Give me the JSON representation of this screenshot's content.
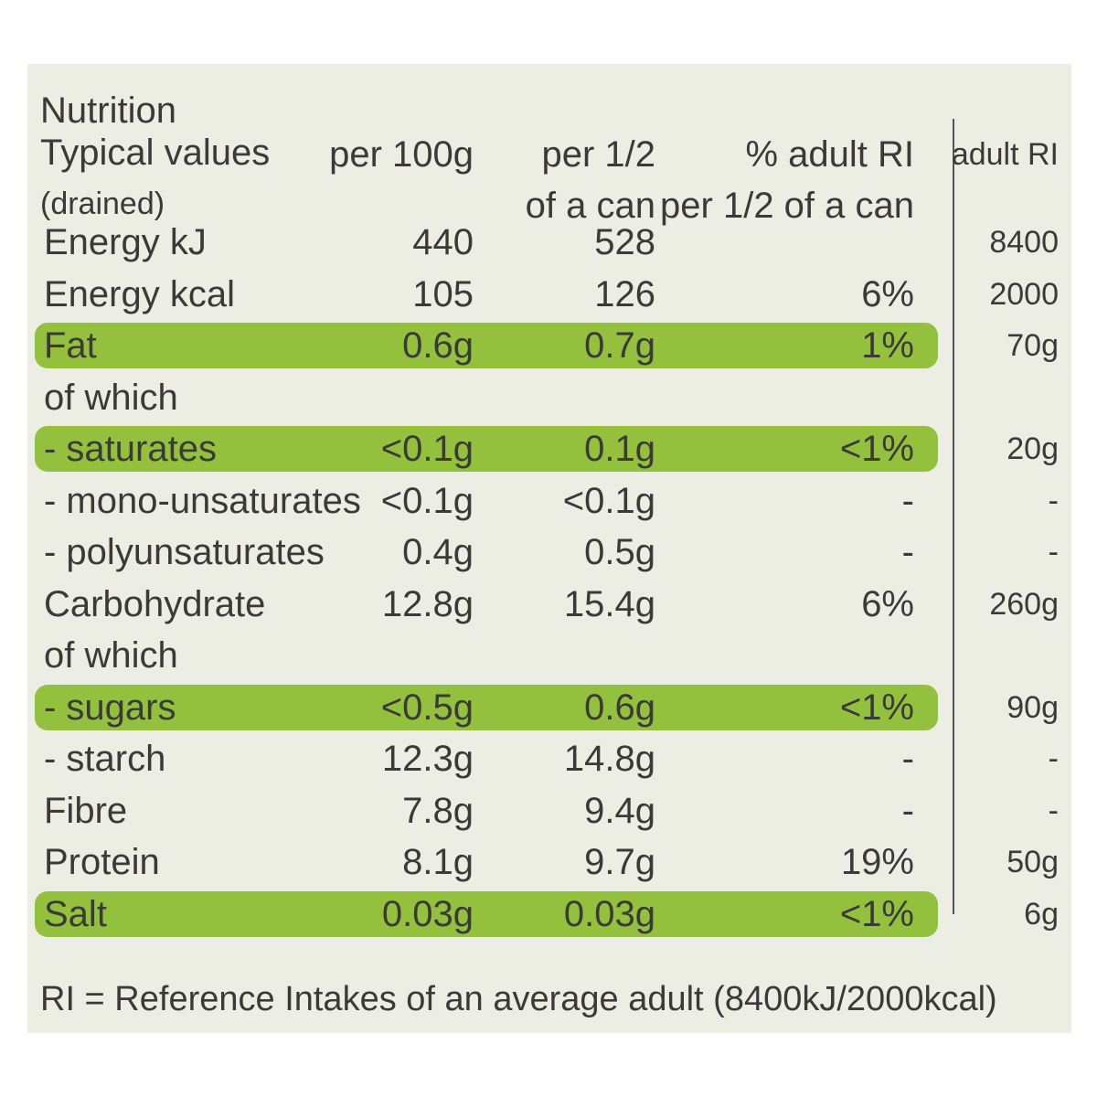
{
  "label": {
    "title": "Nutrition",
    "columns": [
      [
        "Typical values",
        "(drained)"
      ],
      [
        "per 100g"
      ],
      [
        "per 1/2",
        "of a can"
      ],
      [
        "% adult RI",
        "per 1/2 of a can"
      ],
      [
        "adult RI"
      ]
    ],
    "rows": [
      {
        "cells": [
          "Energy kJ",
          "440",
          "528",
          null,
          "8400"
        ],
        "highlight": false
      },
      {
        "cells": [
          "Energy kcal",
          "105",
          "126",
          "6%",
          "2000"
        ],
        "highlight": false
      },
      {
        "cells": [
          "Fat",
          "0.6g",
          "0.7g",
          "1%",
          "70g"
        ],
        "highlight": true
      },
      {
        "cells": [
          "of which",
          null,
          null,
          null,
          null
        ],
        "highlight": false
      },
      {
        "cells": [
          "- saturates",
          "<0.1g",
          "0.1g",
          "<1%",
          "20g"
        ],
        "highlight": true
      },
      {
        "cells": [
          "- mono-unsaturates",
          "<0.1g",
          "<0.1g",
          "-",
          "-"
        ],
        "highlight": false
      },
      {
        "cells": [
          "- polyunsaturates",
          "0.4g",
          "0.5g",
          "-",
          "-"
        ],
        "highlight": false
      },
      {
        "cells": [
          "Carbohydrate",
          "12.8g",
          "15.4g",
          "6%",
          "260g"
        ],
        "highlight": false
      },
      {
        "cells": [
          "of which",
          null,
          null,
          null,
          null
        ],
        "highlight": false
      },
      {
        "cells": [
          "- sugars",
          "<0.5g",
          "0.6g",
          "<1%",
          "90g"
        ],
        "highlight": true
      },
      {
        "cells": [
          "- starch",
          "12.3g",
          "14.8g",
          "-",
          "-"
        ],
        "highlight": false
      },
      {
        "cells": [
          "Fibre",
          "7.8g",
          "9.4g",
          "-",
          "-"
        ],
        "highlight": false
      },
      {
        "cells": [
          "Protein",
          "8.1g",
          "9.7g",
          "19%",
          "50g"
        ],
        "highlight": false
      },
      {
        "cells": [
          "Salt",
          "0.03g",
          "0.03g",
          "<1%",
          "6g"
        ],
        "highlight": true
      }
    ],
    "footnote": "RI = Reference Intakes of an average adult (8400kJ/2000kcal)"
  }
}
